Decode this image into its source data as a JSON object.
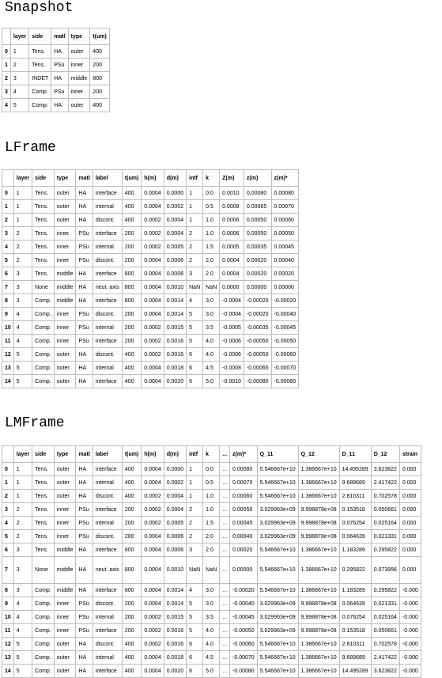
{
  "snapshot": {
    "title": "Snapshot",
    "columns": [
      "",
      "layer",
      "side",
      "matl",
      "type",
      "t(um)"
    ],
    "rows": [
      [
        "0",
        "1",
        "Tens.",
        "HA",
        "outer",
        "400"
      ],
      [
        "1",
        "2",
        "Tens.",
        "PSu",
        "inner",
        "200"
      ],
      [
        "2",
        "3",
        "INDET",
        "HA",
        "middle",
        "800"
      ],
      [
        "3",
        "4",
        "Comp.",
        "PSu",
        "inner",
        "200"
      ],
      [
        "4",
        "5",
        "Comp.",
        "HA",
        "outer",
        "400"
      ]
    ]
  },
  "lframe": {
    "title": "LFrame",
    "columns": [
      "",
      "layer",
      "side",
      "type",
      "matl",
      "label",
      "t(um)",
      "h(m)",
      "d(m)",
      "intf",
      "k",
      "Z(m)",
      "z(m)",
      "z(m)*"
    ],
    "rows": [
      [
        "0",
        "1",
        "Tens.",
        "outer",
        "HA",
        "interface",
        "400",
        "0.0004",
        "0.0000",
        "1",
        "0.0",
        "0.0010",
        "0.00080",
        "0.00080"
      ],
      [
        "1",
        "1",
        "Tens.",
        "outer",
        "HA",
        "internal",
        "400",
        "0.0004",
        "0.0002",
        "1",
        "0.5",
        "0.0008",
        "0.00065",
        "0.00070"
      ],
      [
        "2",
        "1",
        "Tens.",
        "outer",
        "HA",
        "discont.",
        "400",
        "0.0002",
        "0.0004",
        "1",
        "1.0",
        "0.0006",
        "0.00050",
        "0.00060"
      ],
      [
        "3",
        "2",
        "Tens.",
        "inner",
        "PSu",
        "interface",
        "200",
        "0.0002",
        "0.0004",
        "2",
        "1.0",
        "0.0006",
        "0.00050",
        "0.00050"
      ],
      [
        "4",
        "2",
        "Tens.",
        "inner",
        "PSu",
        "internal",
        "200",
        "0.0002",
        "0.0005",
        "2",
        "1.5",
        "0.0005",
        "0.00035",
        "0.00045"
      ],
      [
        "5",
        "2",
        "Tens.",
        "inner",
        "PSu",
        "discont.",
        "200",
        "0.0004",
        "0.0006",
        "2",
        "2.0",
        "0.0004",
        "0.00020",
        "0.00040"
      ],
      [
        "6",
        "3",
        "Tens.",
        "middle",
        "HA",
        "interface",
        "800",
        "0.0004",
        "0.0006",
        "3",
        "2.0",
        "0.0004",
        "0.00020",
        "0.00020"
      ],
      [
        "7",
        "3",
        "None",
        "middle",
        "HA",
        "neut. axis",
        "800",
        "0.0004",
        "0.0010",
        "NaN",
        "NaN",
        "0.0000",
        "0.00000",
        "0.00000"
      ],
      [
        "8",
        "3",
        "Comp.",
        "middle",
        "HA",
        "interface",
        "800",
        "0.0004",
        "0.0014",
        "4",
        "3.0",
        "-0.0004",
        "-0.00020",
        "-0.00020"
      ],
      [
        "9",
        "4",
        "Comp.",
        "inner",
        "PSu",
        "discont.",
        "200",
        "0.0004",
        "0.0014",
        "5",
        "3.0",
        "-0.0004",
        "-0.00020",
        "-0.00040"
      ],
      [
        "10",
        "4",
        "Comp.",
        "inner",
        "PSu",
        "internal",
        "200",
        "0.0002",
        "0.0015",
        "5",
        "3.5",
        "-0.0005",
        "-0.00035",
        "-0.00045"
      ],
      [
        "11",
        "4",
        "Comp.",
        "inner",
        "PSu",
        "interface",
        "200",
        "0.0002",
        "0.0016",
        "5",
        "4.0",
        "-0.0006",
        "-0.00050",
        "-0.00050"
      ],
      [
        "12",
        "5",
        "Comp.",
        "outer",
        "HA",
        "discont.",
        "400",
        "0.0002",
        "0.0016",
        "6",
        "4.0",
        "-0.0006",
        "-0.00050",
        "-0.00060"
      ],
      [
        "13",
        "5",
        "Comp.",
        "outer",
        "HA",
        "internal",
        "400",
        "0.0004",
        "0.0018",
        "6",
        "4.5",
        "-0.0008",
        "-0.00065",
        "-0.00070"
      ],
      [
        "14",
        "5",
        "Comp.",
        "outer",
        "HA",
        "interface",
        "400",
        "0.0004",
        "0.0020",
        "6",
        "5.0",
        "-0.0010",
        "-0.00080",
        "-0.00080"
      ]
    ]
  },
  "lmframe": {
    "title": "LMFrame",
    "columns": [
      "",
      "layer",
      "side",
      "type",
      "matl",
      "label",
      "t(um)",
      "h(m)",
      "d(m)",
      "intf",
      "k",
      "...",
      "z(m)*",
      "Q_11",
      "Q_12",
      "D_11",
      "D_12",
      "strain"
    ],
    "rows": [
      [
        "0",
        "1",
        "Tens.",
        "outer",
        "HA",
        "interface",
        "400",
        "0.0004",
        "0.0000",
        "1",
        "0.0",
        "...",
        "0.00080",
        "5.546667e+10",
        "1.386667e+10",
        "14.495289",
        "3.623822",
        "0.000"
      ],
      [
        "1",
        "1",
        "Tens.",
        "outer",
        "HA",
        "internal",
        "400",
        "0.0004",
        "0.0002",
        "1",
        "0.5",
        "...",
        "0.00070",
        "5.546667e+10",
        "1.386667e+10",
        "9.689689",
        "2.417422",
        "0.000"
      ],
      [
        "2",
        "1",
        "Tens.",
        "outer",
        "HA",
        "discont.",
        "400",
        "0.0002",
        "0.0004",
        "1",
        "1.0",
        "...",
        "0.00060",
        "5.546667e+10",
        "1.386667e+10",
        "2.810311",
        "0.702578",
        "0.000"
      ],
      [
        "3",
        "2",
        "Tens.",
        "inner",
        "PSu",
        "interface",
        "200",
        "0.0002",
        "0.0004",
        "2",
        "1.0",
        "...",
        "0.00050",
        "3.029963e+09",
        "9.998878e+08",
        "0.153518",
        "0.050661",
        "0.000"
      ],
      [
        "4",
        "2",
        "Tens.",
        "inner",
        "PSu",
        "internal",
        "200",
        "0.0002",
        "0.0005",
        "2",
        "1.5",
        "...",
        "0.00045",
        "3.029963e+09",
        "9.998878e+08",
        "0.076254",
        "0.025164",
        "0.000"
      ],
      [
        "5",
        "2",
        "Tens.",
        "inner",
        "PSu",
        "discont.",
        "200",
        "0.0004",
        "0.0006",
        "2",
        "2.0",
        "...",
        "0.00040",
        "3.029963e+09",
        "9.998878e+08",
        "0.064639",
        "0.021331",
        "0.000"
      ],
      [
        "6",
        "3",
        "Tens.",
        "middle",
        "HA",
        "interface",
        "800",
        "0.0004",
        "0.0006",
        "3",
        "2.0",
        "...",
        "0.00020",
        "5.546667e+10",
        "1.386667e+10",
        "1.183289",
        "0.295822",
        "0.000"
      ],
      [
        "7",
        "3",
        "None",
        "middle",
        "HA",
        "neut. axis",
        "800",
        "0.0004",
        "0.0010",
        "NaN",
        "NaN",
        "...",
        "0.00000",
        "5.546667e+10",
        "1.386667e+10",
        "0.295822",
        "0.073956",
        "0.000"
      ],
      [
        "8",
        "3",
        "Comp.",
        "middle",
        "HA",
        "interface",
        "800",
        "0.0004",
        "0.0014",
        "4",
        "3.0",
        "...",
        "-0.00020",
        "5.546667e+10",
        "1.386667e+10",
        "1.183289",
        "0.295822",
        "-0.000"
      ],
      [
        "9",
        "4",
        "Comp.",
        "inner",
        "PSu",
        "discont.",
        "200",
        "0.0004",
        "0.0014",
        "5",
        "3.0",
        "...",
        "-0.00040",
        "3.029963e+09",
        "9.998878e+08",
        "0.064639",
        "0.021331",
        "-0.000"
      ],
      [
        "10",
        "4",
        "Comp.",
        "inner",
        "PSu",
        "internal",
        "200",
        "0.0002",
        "0.0015",
        "5",
        "3.5",
        "...",
        "-0.00045",
        "3.029963e+09",
        "9.998878e+08",
        "0.076254",
        "0.025164",
        "-0.000"
      ],
      [
        "11",
        "4",
        "Comp.",
        "inner",
        "PSu",
        "interface",
        "200",
        "0.0002",
        "0.0016",
        "5",
        "4.0",
        "...",
        "-0.00050",
        "3.029963e+09",
        "9.998878e+08",
        "0.153518",
        "0.050661",
        "-0.000"
      ],
      [
        "12",
        "5",
        "Comp.",
        "outer",
        "HA",
        "discont.",
        "400",
        "0.0002",
        "0.0016",
        "6",
        "4.0",
        "...",
        "-0.00060",
        "5.546667e+10",
        "1.386667e+10",
        "2.810311",
        "0.702578",
        "-0.000"
      ],
      [
        "13",
        "5",
        "Comp.",
        "outer",
        "HA",
        "internal",
        "400",
        "0.0004",
        "0.0018",
        "6",
        "4.5",
        "...",
        "-0.00070",
        "5.546667e+10",
        "1.386667e+10",
        "9.689689",
        "2.417422",
        "-0.000"
      ],
      [
        "14",
        "5",
        "Comp.",
        "outer",
        "HA",
        "interface",
        "400",
        "0.0004",
        "0.0020",
        "6",
        "5.0",
        "...",
        "-0.00080",
        "5.546667e+10",
        "1.386667e+10",
        "14.495289",
        "3.623822",
        "-0.000"
      ]
    ]
  }
}
